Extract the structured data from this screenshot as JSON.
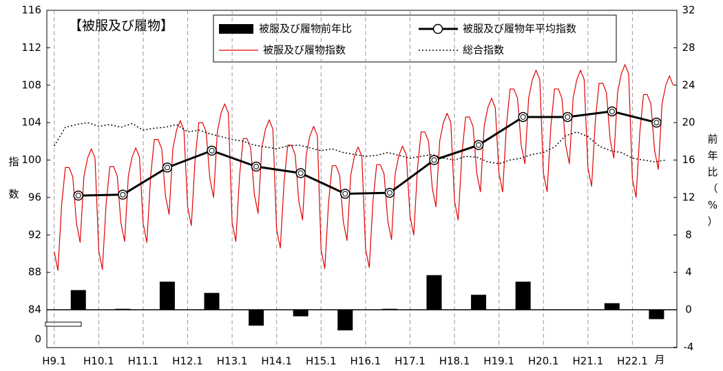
{
  "chart_data": {
    "type": "combo",
    "title": "【被服及び履物】",
    "y_label": "指数",
    "y2_label": "前年比（%）",
    "x_unit": "月",
    "ybreak_label": "0",
    "xlim": [
      -2,
      168
    ],
    "xticks": [
      {
        "value": 0,
        "label": "H9.1"
      },
      {
        "value": 12,
        "label": "H10.1"
      },
      {
        "value": 24,
        "label": "H11.1"
      },
      {
        "value": 36,
        "label": "H12.1"
      },
      {
        "value": 48,
        "label": "H13.1"
      },
      {
        "value": 60,
        "label": "H14.1"
      },
      {
        "value": 72,
        "label": "H15.1"
      },
      {
        "value": 84,
        "label": "H16.1"
      },
      {
        "value": 96,
        "label": "H17.1"
      },
      {
        "value": 108,
        "label": "H18.1"
      },
      {
        "value": 120,
        "label": "H19.1"
      },
      {
        "value": 132,
        "label": "H20.1"
      },
      {
        "value": 144,
        "label": "H21.1"
      },
      {
        "value": 156,
        "label": "H22.1"
      }
    ],
    "ylim": [
      80,
      116
    ],
    "yticks": [
      84,
      88,
      92,
      96,
      100,
      104,
      108,
      112,
      116
    ],
    "y2lim": [
      -4,
      32
    ],
    "y2ticks": [
      -4,
      0,
      4,
      8,
      12,
      16,
      20,
      24,
      28,
      32
    ],
    "grid": true,
    "series": [
      {
        "name": "被服及び履物前年比",
        "type": "bar",
        "axis": "y2",
        "color": "#000000",
        "x": [
          6.5,
          18.5,
          30.5,
          42.5,
          54.5,
          66.5,
          78.5,
          90.5,
          102.5,
          114.5,
          126.5,
          138.5,
          150.5,
          162.5
        ],
        "values": [
          2.1,
          0.1,
          3.0,
          1.8,
          -1.7,
          -0.7,
          -2.2,
          0.1,
          3.7,
          1.6,
          3.0,
          0.0,
          0.7,
          -1.0
        ]
      },
      {
        "name": "被服及び履物年平均指数",
        "type": "line",
        "marker": "circle",
        "color": "#000000",
        "x": [
          6.5,
          18.5,
          30.5,
          42.5,
          54.5,
          66.5,
          78.5,
          90.5,
          102.5,
          114.5,
          126.5,
          138.5,
          150.5,
          162.5
        ],
        "values": [
          96.2,
          96.3,
          99.2,
          101.0,
          99.3,
          98.6,
          96.4,
          96.5,
          100.0,
          101.6,
          104.6,
          104.6,
          105.2,
          104.0
        ]
      },
      {
        "name": "被服及び履物指数",
        "type": "line",
        "color": "#e00000",
        "values": [
          90.2,
          88.2,
          95.2,
          99.2,
          99.2,
          98.2,
          93.2,
          91.2,
          98.2,
          100.2,
          101.2,
          100.2,
          90.3,
          88.3,
          95.3,
          99.3,
          99.3,
          98.3,
          93.3,
          91.3,
          98.3,
          100.3,
          101.3,
          100.3,
          93.2,
          91.2,
          98.2,
          102.2,
          102.2,
          101.2,
          96.2,
          94.2,
          101.2,
          103.2,
          104.2,
          103.2,
          95,
          93,
          100,
          104,
          104,
          103,
          98,
          96,
          103,
          105,
          106,
          105,
          93.3,
          91.3,
          98.3,
          102.3,
          102.3,
          101.3,
          96.3,
          94.3,
          101.3,
          103.3,
          104.3,
          103.3,
          92.6,
          90.6,
          97.6,
          101.6,
          101.6,
          100.6,
          95.6,
          93.6,
          100.6,
          102.6,
          103.6,
          102.6,
          90.4,
          88.4,
          95.4,
          99.4,
          99.4,
          98.4,
          93.4,
          91.4,
          98.4,
          100.4,
          101.4,
          100.4,
          90.5,
          88.5,
          95.5,
          99.5,
          99.5,
          98.5,
          93.5,
          91.5,
          98.5,
          100.5,
          101.5,
          100.5,
          94,
          92,
          99,
          103,
          103,
          102,
          97,
          95,
          102,
          104,
          105,
          104,
          95.6,
          93.6,
          100.6,
          104.6,
          104.6,
          103.6,
          98.6,
          96.6,
          103.6,
          105.6,
          106.6,
          105.6,
          98.6,
          96.6,
          103.6,
          107.6,
          107.6,
          106.6,
          101.6,
          99.6,
          106.6,
          108.6,
          109.6,
          108.6,
          98.6,
          96.6,
          103.6,
          107.6,
          107.6,
          106.6,
          101.6,
          99.6,
          106.6,
          108.6,
          109.6,
          108.6,
          99.2,
          97.2,
          104.2,
          108.2,
          108.2,
          107.2,
          102.2,
          100.2,
          107.2,
          109.2,
          110.2,
          109.2,
          98,
          96,
          103,
          107,
          107,
          106,
          101,
          99,
          106,
          108,
          109,
          108
        ]
      },
      {
        "name": "総合指数",
        "type": "line",
        "dash": "dotted",
        "color": "#000000",
        "x": [
          0,
          3,
          6,
          9,
          12,
          15,
          18,
          21,
          24,
          27,
          30,
          33,
          36,
          39,
          42,
          45,
          48,
          51,
          54,
          57,
          60,
          63,
          66,
          69,
          72,
          75,
          78,
          81,
          84,
          87,
          90,
          93,
          96,
          99,
          102,
          105,
          108,
          111,
          114,
          117,
          120,
          123,
          126,
          129,
          132,
          135,
          138,
          141,
          144,
          147,
          150,
          153,
          156,
          159,
          162,
          165
        ],
        "values": [
          101.5,
          103.5,
          103.8,
          104,
          103.6,
          103.8,
          103.5,
          103.9,
          103.2,
          103.4,
          103.5,
          103.8,
          103,
          103.2,
          102.8,
          102.5,
          102.2,
          102,
          101.6,
          101.4,
          101.2,
          101.5,
          101.6,
          101.3,
          101,
          101.2,
          100.8,
          100.6,
          100.4,
          100.5,
          100.8,
          100.5,
          100.2,
          100.4,
          100.6,
          100.2,
          100,
          100.4,
          100.3,
          99.8,
          99.6,
          100,
          100.2,
          100.6,
          100.8,
          101.4,
          102.6,
          103,
          102.5,
          101.5,
          101,
          100.8,
          100.2,
          100,
          99.8,
          100
        ]
      }
    ]
  }
}
